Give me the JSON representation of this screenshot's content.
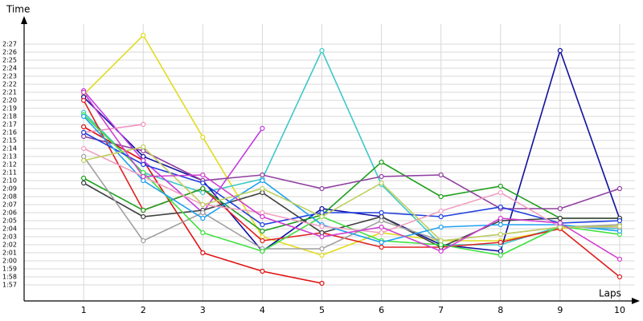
{
  "chart_data": {
    "type": "line",
    "y_label": "Time",
    "x_label": "Laps",
    "x": [
      1,
      2,
      3,
      4,
      5,
      6,
      7,
      8,
      9,
      10
    ],
    "xlim": [
      0,
      10.3
    ],
    "xticks": [
      1,
      2,
      3,
      4,
      5,
      6,
      7,
      8,
      9,
      10
    ],
    "ylim": [
      115,
      150
    ],
    "yticks": [
      {
        "value": 117,
        "label": "1:57"
      },
      {
        "value": 118,
        "label": "1:58"
      },
      {
        "value": 119,
        "label": "1:59"
      },
      {
        "value": 120,
        "label": "2:00"
      },
      {
        "value": 121,
        "label": "2:01"
      },
      {
        "value": 122,
        "label": "2:02"
      },
      {
        "value": 123,
        "label": "2:03"
      },
      {
        "value": 124,
        "label": "2:04"
      },
      {
        "value": 125,
        "label": "2:05"
      },
      {
        "value": 126,
        "label": "2:06"
      },
      {
        "value": 127,
        "label": "2:07"
      },
      {
        "value": 128,
        "label": "2:08"
      },
      {
        "value": 129,
        "label": "2:09"
      },
      {
        "value": 130,
        "label": "2:10"
      },
      {
        "value": 131,
        "label": "2:11"
      },
      {
        "value": 132,
        "label": "2:12"
      },
      {
        "value": 133,
        "label": "2:13"
      },
      {
        "value": 134,
        "label": "2:14"
      },
      {
        "value": 135,
        "label": "2:15"
      },
      {
        "value": 136,
        "label": "2:16"
      },
      {
        "value": 137,
        "label": "2:17"
      },
      {
        "value": 138,
        "label": "2:18"
      },
      {
        "value": 139,
        "label": "2:19"
      },
      {
        "value": 140,
        "label": "2:20"
      },
      {
        "value": 141,
        "label": "2:21"
      },
      {
        "value": 142,
        "label": "2:22"
      },
      {
        "value": 143,
        "label": "2:23"
      },
      {
        "value": 144,
        "label": "2:24"
      },
      {
        "value": 145,
        "label": "2:25"
      },
      {
        "value": 146,
        "label": "2:26"
      },
      {
        "value": 147,
        "label": "2:27"
      }
    ],
    "grid": true,
    "series": [
      {
        "color": "#e0dc20",
        "values": [
          140.7,
          148.1,
          135.4,
          123.0,
          120.7,
          123.5,
          122.5,
          122.5,
          124.0,
          124.5
        ]
      },
      {
        "color": "#40c8c8",
        "values": [
          138.5,
          131.0,
          128.5,
          130.2,
          146.2,
          129.5,
          122.0,
          122.0,
          124.3,
          124.0
        ]
      },
      {
        "color": "#1010a0",
        "values": [
          140.4,
          133.0,
          130.0,
          121.2,
          126.5,
          125.5,
          122.0,
          121.2,
          146.2,
          125.2
        ]
      },
      {
        "color": "#e01010",
        "values": [
          136.7,
          132.5,
          121.0,
          118.7,
          117.2,
          null,
          null,
          null,
          null,
          null
        ]
      },
      {
        "color": "#c040e0",
        "values": [
          141.2,
          132.5,
          126.0,
          136.5,
          null,
          null,
          null,
          null,
          null,
          null
        ]
      },
      {
        "color": "#f090c0",
        "values": [
          136.0,
          137.0,
          null,
          null,
          null,
          null,
          null,
          null,
          null,
          null
        ]
      },
      {
        "color": "#e02020",
        "values": [
          140.0,
          126.3,
          129.0,
          122.5,
          123.5,
          121.7,
          121.7,
          122.3,
          124.0,
          118.0
        ]
      },
      {
        "color": "#20a020",
        "values": [
          130.3,
          126.3,
          129.0,
          123.7,
          125.7,
          132.3,
          128.0,
          129.3,
          125.3,
          125.3
        ]
      },
      {
        "color": "#9040a0",
        "values": [
          135.5,
          133.7,
          130.0,
          130.7,
          129.0,
          130.5,
          130.7,
          126.5,
          126.5,
          129.0
        ]
      },
      {
        "color": "#404040",
        "values": [
          129.7,
          125.5,
          126.3,
          128.5,
          123.5,
          125.5,
          121.7,
          125.0,
          125.3,
          125.3
        ]
      },
      {
        "color": "#a0a0a0",
        "values": [
          133.0,
          122.5,
          126.0,
          121.5,
          121.5,
          125.0,
          122.5,
          123.3,
          124.2,
          124.5
        ]
      },
      {
        "color": "#40e040",
        "values": [
          138.2,
          131.0,
          123.5,
          121.2,
          125.5,
          122.5,
          122.0,
          120.7,
          124.3,
          123.3
        ]
      },
      {
        "color": "#2040e0",
        "values": [
          136.0,
          132.0,
          129.7,
          124.5,
          126.0,
          126.0,
          125.5,
          126.7,
          124.7,
          125.0
        ]
      },
      {
        "color": "#20a0f0",
        "values": [
          138.0,
          130.0,
          125.3,
          130.0,
          124.5,
          122.3,
          124.2,
          124.5,
          124.5,
          123.7
        ]
      },
      {
        "color": "#f0a0c0",
        "values": [
          134.0,
          130.5,
          127.0,
          126.0,
          124.3,
          123.5,
          126.2,
          128.5,
          124.2,
          124.2
        ]
      },
      {
        "color": "#c0d060",
        "values": [
          132.5,
          134.2,
          127.0,
          129.0,
          125.5,
          129.7,
          122.5,
          123.3,
          124.2,
          124.3
        ]
      },
      {
        "color": "#d040d0",
        "values": [
          141.0,
          130.5,
          130.7,
          125.5,
          123.0,
          124.2,
          121.2,
          125.3,
          124.7,
          120.2
        ]
      }
    ]
  }
}
